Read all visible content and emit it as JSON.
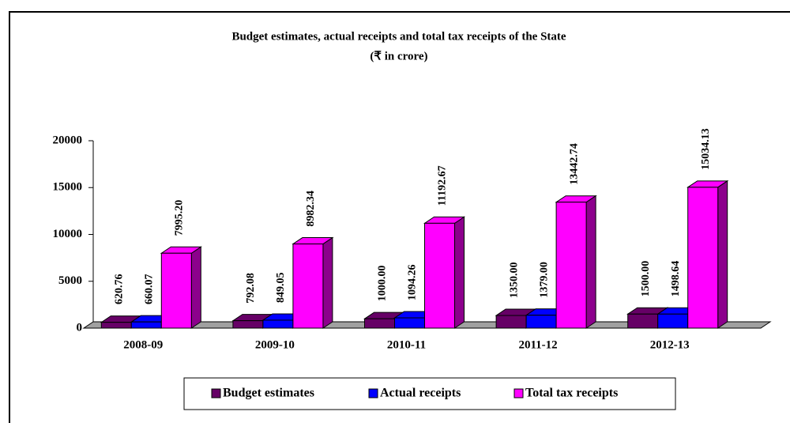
{
  "chart_data": {
    "type": "bar3d",
    "title": "Budget estimates, actual receipts and total tax receipts of the State",
    "subtitle": "(₹ in crore)",
    "categories": [
      "2008-09",
      "2009-10",
      "2010-11",
      "2011-12",
      "2012-13"
    ],
    "series": [
      {
        "name": "Budget estimates",
        "color": "#660066",
        "values": [
          620.76,
          792.08,
          1000,
          1350,
          1500
        ],
        "value_labels": [
          "620.76",
          "792.08",
          "1000.00",
          "1350.00",
          "1500.00"
        ]
      },
      {
        "name": "Actual receipts",
        "color": "#0000ff",
        "values": [
          660.07,
          849.05,
          1094.26,
          1379,
          1498.64
        ],
        "value_labels": [
          "660.07",
          "849.05",
          "1094.26",
          "1379.00",
          "1498.64"
        ]
      },
      {
        "name": "Total tax receipts",
        "color": "#ff00ff",
        "values": [
          7995.2,
          8982.34,
          11192.67,
          13442.74,
          15034.13
        ],
        "value_labels": [
          "7995.20",
          "8982.34",
          "11192.67",
          "13442.74",
          "15034.13"
        ]
      }
    ],
    "ylim": [
      0,
      20000
    ],
    "yticks": [
      0,
      5000,
      10000,
      15000,
      20000
    ],
    "grid": false,
    "legend": "bottom"
  }
}
